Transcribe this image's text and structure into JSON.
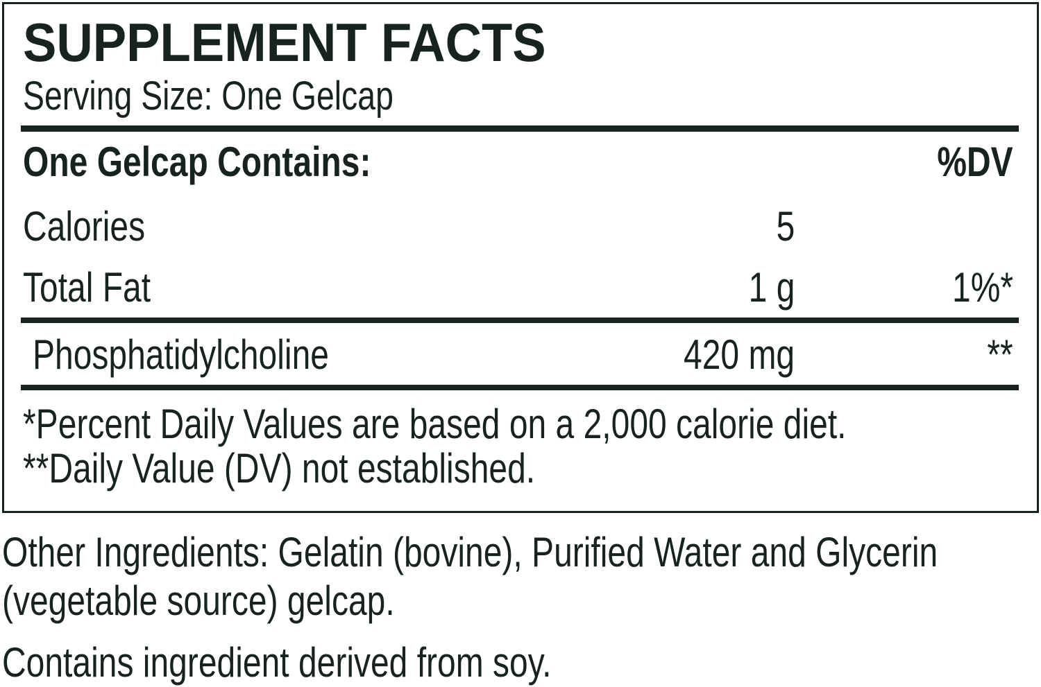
{
  "header": {
    "title": "SUPPLEMENT FACTS",
    "serving_size": "Serving Size: One Gelcap"
  },
  "table": {
    "header": {
      "label": "One Gelcap Contains:",
      "dv": "%DV"
    },
    "rows": [
      {
        "name": "Calories",
        "amount": "5"
      },
      {
        "name": "Total Fat",
        "amount": "1 g",
        "dv": "1%*"
      },
      {
        "name": "Phosphatidylcholine",
        "amount": "420 mg",
        "dv": "**"
      }
    ]
  },
  "footnotes": [
    "*Percent Daily Values are based on a 2,000 calorie diet.",
    "**Daily Value (DV) not established."
  ],
  "other_ingredients": "Other Ingredients: Gelatin (bovine), Purified Water and Glycerin (vegetable source) gelcap.",
  "allergen": "Contains ingredient derived from soy."
}
